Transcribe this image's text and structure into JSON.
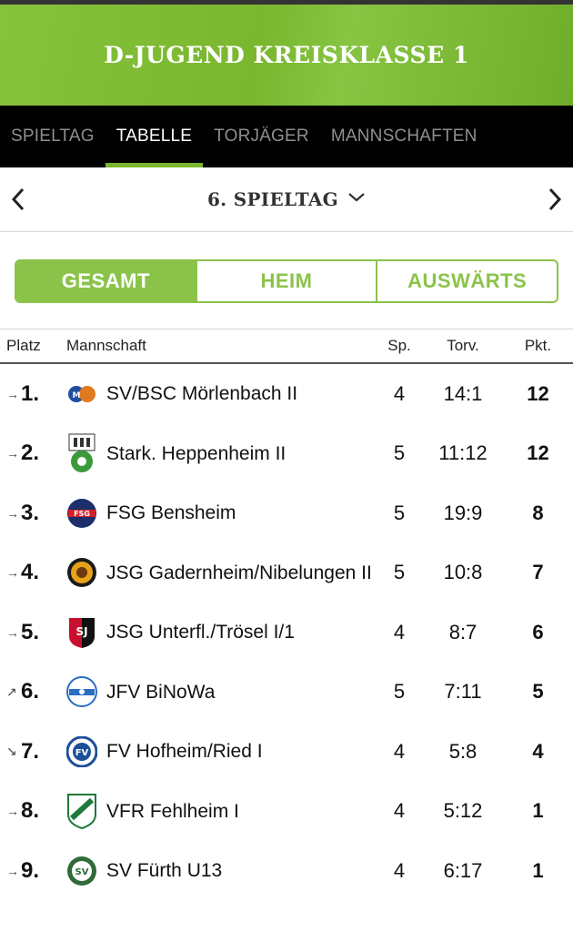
{
  "header": {
    "title": "D-JUGEND KREISKLASSE 1"
  },
  "tabs": [
    {
      "label": "SPIELTAG",
      "active": false
    },
    {
      "label": "TABELLE",
      "active": true
    },
    {
      "label": "TORJÄGER",
      "active": false
    },
    {
      "label": "MANNSCHAFTEN",
      "active": false
    }
  ],
  "matchday": {
    "label": "6. SPIELTAG",
    "prev_icon": "chevron-left-icon",
    "next_icon": "chevron-right-icon",
    "dropdown_icon": "chevron-down-icon"
  },
  "filter": [
    {
      "label": "GESAMT",
      "active": true
    },
    {
      "label": "HEIM",
      "active": false
    },
    {
      "label": "AUSWÄRTS",
      "active": false
    }
  ],
  "table": {
    "headers": {
      "place": "Platz",
      "team": "Mannschaft",
      "games": "Sp.",
      "goals": "Torv.",
      "points": "Pkt."
    },
    "rows": [
      {
        "trend": "→",
        "rank": "1.",
        "team": "SV/BSC Mörlenbach II",
        "games": "4",
        "goals": "14:1",
        "points": "12"
      },
      {
        "trend": "→",
        "rank": "2.",
        "team": "Stark. Heppenheim II",
        "games": "5",
        "goals": "11:12",
        "points": "12"
      },
      {
        "trend": "→",
        "rank": "3.",
        "team": "FSG Bensheim",
        "games": "5",
        "goals": "19:9",
        "points": "8"
      },
      {
        "trend": "→",
        "rank": "4.",
        "team": "JSG Gadernheim/Nibelungen II",
        "games": "5",
        "goals": "10:8",
        "points": "7"
      },
      {
        "trend": "→",
        "rank": "5.",
        "team": "JSG Unterfl./Trösel I/1",
        "games": "4",
        "goals": "8:7",
        "points": "6"
      },
      {
        "trend": "↗",
        "rank": "6.",
        "team": "JFV BiNoWa",
        "games": "5",
        "goals": "7:11",
        "points": "5"
      },
      {
        "trend": "↘",
        "rank": "7.",
        "team": "FV Hofheim/Ried I",
        "games": "4",
        "goals": "5:8",
        "points": "4"
      },
      {
        "trend": "→",
        "rank": "8.",
        "team": "VFR Fehlheim I",
        "games": "4",
        "goals": "5:12",
        "points": "1"
      },
      {
        "trend": "→",
        "rank": "9.",
        "team": "SV Fürth U13",
        "games": "4",
        "goals": "6:17",
        "points": "1"
      }
    ]
  },
  "colors": {
    "accent": "#7ab72f",
    "tab_bar": "#000000"
  }
}
